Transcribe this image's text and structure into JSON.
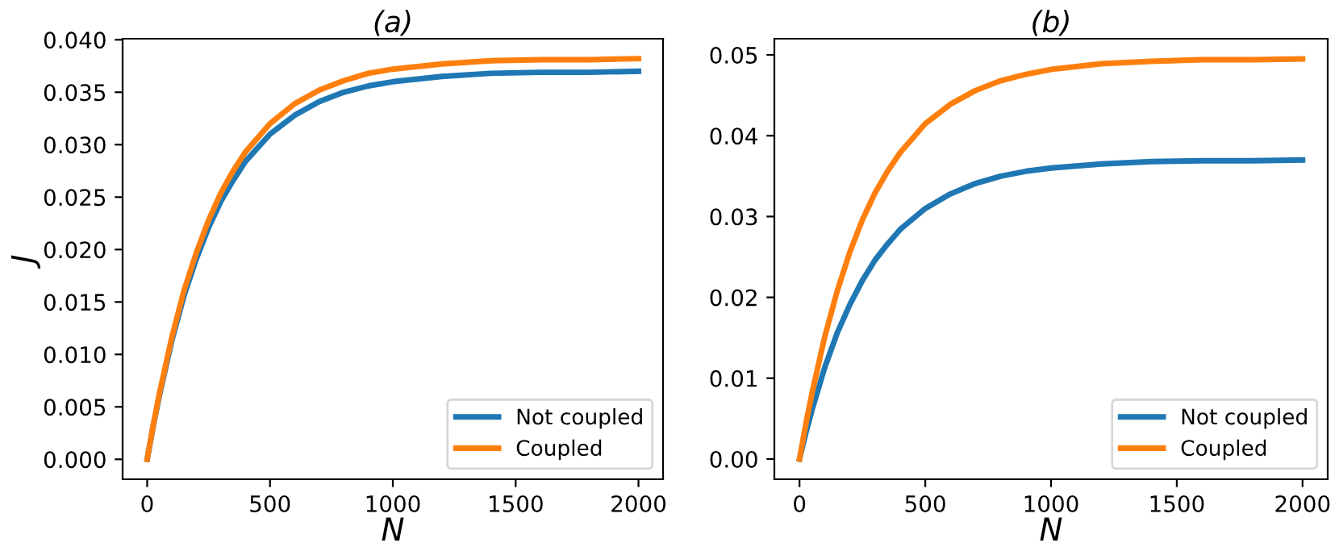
{
  "chart_data": [
    {
      "type": "line",
      "title": "(a)",
      "xlabel": "N",
      "ylabel": "J",
      "x": [
        0,
        25,
        50,
        100,
        150,
        200,
        250,
        300,
        350,
        400,
        500,
        600,
        700,
        800,
        900,
        1000,
        1200,
        1400,
        1600,
        1800,
        2000
      ],
      "series": [
        {
          "name": "Not coupled",
          "color": "#1f77b4",
          "values": [
            0,
            0.0032,
            0.0061,
            0.0113,
            0.0156,
            0.0191,
            0.0221,
            0.0246,
            0.0266,
            0.0284,
            0.031,
            0.0328,
            0.0341,
            0.035,
            0.0356,
            0.036,
            0.0365,
            0.0368,
            0.0369,
            0.0369,
            0.037
          ]
        },
        {
          "name": "Coupled",
          "color": "#ff7f0e",
          "values": [
            0,
            0.0033,
            0.0063,
            0.0116,
            0.0161,
            0.0197,
            0.0228,
            0.0254,
            0.0275,
            0.0293,
            0.032,
            0.0339,
            0.0352,
            0.0361,
            0.0368,
            0.0372,
            0.0377,
            0.038,
            0.0381,
            0.0381,
            0.0382
          ]
        }
      ],
      "xlim": [
        -100,
        2100
      ],
      "xticks": [
        0,
        500,
        1000,
        1500,
        2000
      ],
      "ylim": [
        -0.0019,
        0.0401
      ],
      "yticks": [
        {
          "value": 0,
          "label": "0.000"
        },
        {
          "value": 0.005,
          "label": "0.005"
        },
        {
          "value": 0.01,
          "label": "0.010"
        },
        {
          "value": 0.015,
          "label": "0.015"
        },
        {
          "value": 0.02,
          "label": "0.020"
        },
        {
          "value": 0.025,
          "label": "0.025"
        },
        {
          "value": 0.03,
          "label": "0.030"
        },
        {
          "value": 0.035,
          "label": "0.035"
        },
        {
          "value": 0.04,
          "label": "0.040"
        }
      ],
      "legend": "bottom right",
      "grid": false
    },
    {
      "type": "line",
      "title": "(b)",
      "xlabel": "N",
      "x": [
        0,
        25,
        50,
        100,
        150,
        200,
        250,
        300,
        350,
        400,
        500,
        600,
        700,
        800,
        900,
        1000,
        1200,
        1400,
        1600,
        1800,
        2000
      ],
      "series": [
        {
          "name": "Not coupled",
          "color": "#1f77b4",
          "values": [
            0,
            0.0032,
            0.0061,
            0.0113,
            0.0156,
            0.0191,
            0.0221,
            0.0246,
            0.0266,
            0.0284,
            0.031,
            0.0328,
            0.0341,
            0.035,
            0.0356,
            0.036,
            0.0365,
            0.0368,
            0.0369,
            0.0369,
            0.037
          ]
        },
        {
          "name": "Coupled",
          "color": "#ff7f0e",
          "values": [
            0,
            0.0043,
            0.0082,
            0.0151,
            0.0208,
            0.0256,
            0.0296,
            0.0329,
            0.0356,
            0.0379,
            0.0415,
            0.0439,
            0.0456,
            0.0468,
            0.0476,
            0.0482,
            0.0489,
            0.0492,
            0.0494,
            0.0494,
            0.0495
          ]
        }
      ],
      "xlim": [
        -100,
        2100
      ],
      "xticks": [
        0,
        500,
        1000,
        1500,
        2000
      ],
      "ylim": [
        -0.0025,
        0.052
      ],
      "yticks": [
        {
          "value": 0,
          "label": "0.00"
        },
        {
          "value": 0.01,
          "label": "0.01"
        },
        {
          "value": 0.02,
          "label": "0.02"
        },
        {
          "value": 0.03,
          "label": "0.03"
        },
        {
          "value": 0.04,
          "label": "0.04"
        },
        {
          "value": 0.05,
          "label": "0.05"
        }
      ],
      "legend": "bottom right",
      "grid": false
    }
  ]
}
